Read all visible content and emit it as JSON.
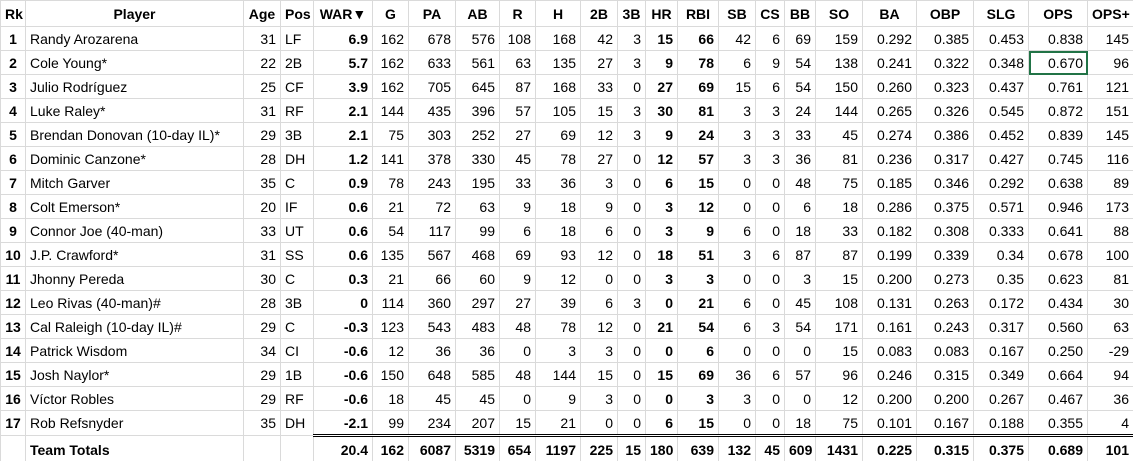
{
  "table": {
    "header": [
      "Rk",
      "Player",
      "Age",
      "Pos",
      "WAR▼",
      "G",
      "PA",
      "AB",
      "R",
      "H",
      "2B",
      "3B",
      "HR",
      "RBI",
      "SB",
      "CS",
      "BB",
      "SO",
      "BA",
      "OBP",
      "SLG",
      "OPS",
      "OPS+"
    ],
    "rows": [
      [
        "1",
        "Randy Arozarena",
        "31",
        "LF",
        "6.9",
        "162",
        "678",
        "576",
        "108",
        "168",
        "42",
        "3",
        "15",
        "66",
        "42",
        "6",
        "69",
        "159",
        "0.292",
        "0.385",
        "0.453",
        "0.838",
        "145"
      ],
      [
        "2",
        "Cole Young*",
        "22",
        "2B",
        "5.7",
        "162",
        "633",
        "561",
        "63",
        "135",
        "27",
        "3",
        "9",
        "78",
        "6",
        "9",
        "54",
        "138",
        "0.241",
        "0.322",
        "0.348",
        "0.670",
        "96"
      ],
      [
        "3",
        "Julio Rodríguez",
        "25",
        "CF",
        "3.9",
        "162",
        "705",
        "645",
        "87",
        "168",
        "33",
        "0",
        "27",
        "69",
        "15",
        "6",
        "54",
        "150",
        "0.260",
        "0.323",
        "0.437",
        "0.761",
        "121"
      ],
      [
        "4",
        "Luke Raley*",
        "31",
        "RF",
        "2.1",
        "144",
        "435",
        "396",
        "57",
        "105",
        "15",
        "3",
        "30",
        "81",
        "3",
        "3",
        "24",
        "144",
        "0.265",
        "0.326",
        "0.545",
        "0.872",
        "151"
      ],
      [
        "5",
        "Brendan Donovan (10-day IL)*",
        "29",
        "3B",
        "2.1",
        "75",
        "303",
        "252",
        "27",
        "69",
        "12",
        "3",
        "9",
        "24",
        "3",
        "3",
        "33",
        "45",
        "0.274",
        "0.386",
        "0.452",
        "0.839",
        "145"
      ],
      [
        "6",
        "Dominic Canzone*",
        "28",
        "DH",
        "1.2",
        "141",
        "378",
        "330",
        "45",
        "78",
        "27",
        "0",
        "12",
        "57",
        "3",
        "3",
        "36",
        "81",
        "0.236",
        "0.317",
        "0.427",
        "0.745",
        "116"
      ],
      [
        "7",
        "Mitch Garver",
        "35",
        "C",
        "0.9",
        "78",
        "243",
        "195",
        "33",
        "36",
        "3",
        "0",
        "6",
        "15",
        "0",
        "0",
        "48",
        "75",
        "0.185",
        "0.346",
        "0.292",
        "0.638",
        "89"
      ],
      [
        "8",
        "Colt Emerson*",
        "20",
        "IF",
        "0.6",
        "21",
        "72",
        "63",
        "9",
        "18",
        "9",
        "0",
        "3",
        "12",
        "0",
        "0",
        "6",
        "18",
        "0.286",
        "0.375",
        "0.571",
        "0.946",
        "173"
      ],
      [
        "9",
        "Connor Joe (40-man)",
        "33",
        "UT",
        "0.6",
        "54",
        "117",
        "99",
        "6",
        "18",
        "6",
        "0",
        "3",
        "9",
        "6",
        "0",
        "18",
        "33",
        "0.182",
        "0.308",
        "0.333",
        "0.641",
        "88"
      ],
      [
        "10",
        "J.P. Crawford*",
        "31",
        "SS",
        "0.6",
        "135",
        "567",
        "468",
        "69",
        "93",
        "12",
        "0",
        "18",
        "51",
        "3",
        "6",
        "87",
        "87",
        "0.199",
        "0.339",
        "0.34",
        "0.678",
        "100"
      ],
      [
        "11",
        "Jhonny Pereda",
        "30",
        "C",
        "0.3",
        "21",
        "66",
        "60",
        "9",
        "12",
        "0",
        "0",
        "3",
        "3",
        "0",
        "0",
        "3",
        "15",
        "0.200",
        "0.273",
        "0.35",
        "0.623",
        "81"
      ],
      [
        "12",
        "Leo Rivas (40-man)#",
        "28",
        "3B",
        "0",
        "114",
        "360",
        "297",
        "27",
        "39",
        "6",
        "3",
        "0",
        "21",
        "6",
        "0",
        "45",
        "108",
        "0.131",
        "0.263",
        "0.172",
        "0.434",
        "30"
      ],
      [
        "13",
        "Cal Raleigh (10-day IL)#",
        "29",
        "C",
        "-0.3",
        "123",
        "543",
        "483",
        "48",
        "78",
        "12",
        "0",
        "21",
        "54",
        "6",
        "3",
        "54",
        "171",
        "0.161",
        "0.243",
        "0.317",
        "0.560",
        "63"
      ],
      [
        "14",
        "Patrick Wisdom",
        "34",
        "CI",
        "-0.6",
        "12",
        "36",
        "36",
        "0",
        "3",
        "3",
        "0",
        "0",
        "6",
        "0",
        "0",
        "0",
        "15",
        "0.083",
        "0.083",
        "0.167",
        "0.250",
        "-29"
      ],
      [
        "15",
        "Josh Naylor*",
        "29",
        "1B",
        "-0.6",
        "150",
        "648",
        "585",
        "48",
        "144",
        "15",
        "0",
        "15",
        "69",
        "36",
        "6",
        "57",
        "96",
        "0.246",
        "0.315",
        "0.349",
        "0.664",
        "94"
      ],
      [
        "16",
        "Víctor Robles",
        "29",
        "RF",
        "-0.6",
        "18",
        "45",
        "45",
        "0",
        "9",
        "3",
        "0",
        "0",
        "3",
        "3",
        "0",
        "0",
        "12",
        "0.200",
        "0.200",
        "0.267",
        "0.467",
        "36"
      ],
      [
        "17",
        "Rob Refsnyder",
        "35",
        "DH",
        "-2.1",
        "99",
        "234",
        "207",
        "15",
        "21",
        "0",
        "0",
        "6",
        "15",
        "0",
        "0",
        "18",
        "75",
        "0.101",
        "0.167",
        "0.188",
        "0.355",
        "4"
      ]
    ],
    "totals": {
      "label": "Team Totals",
      "values": [
        "20.4",
        "162",
        "6087",
        "5319",
        "654",
        "1197",
        "225",
        "15",
        "180",
        "639",
        "132",
        "45",
        "609",
        "1431",
        "0.225",
        "0.315",
        "0.375",
        "0.689",
        "101"
      ]
    }
  }
}
